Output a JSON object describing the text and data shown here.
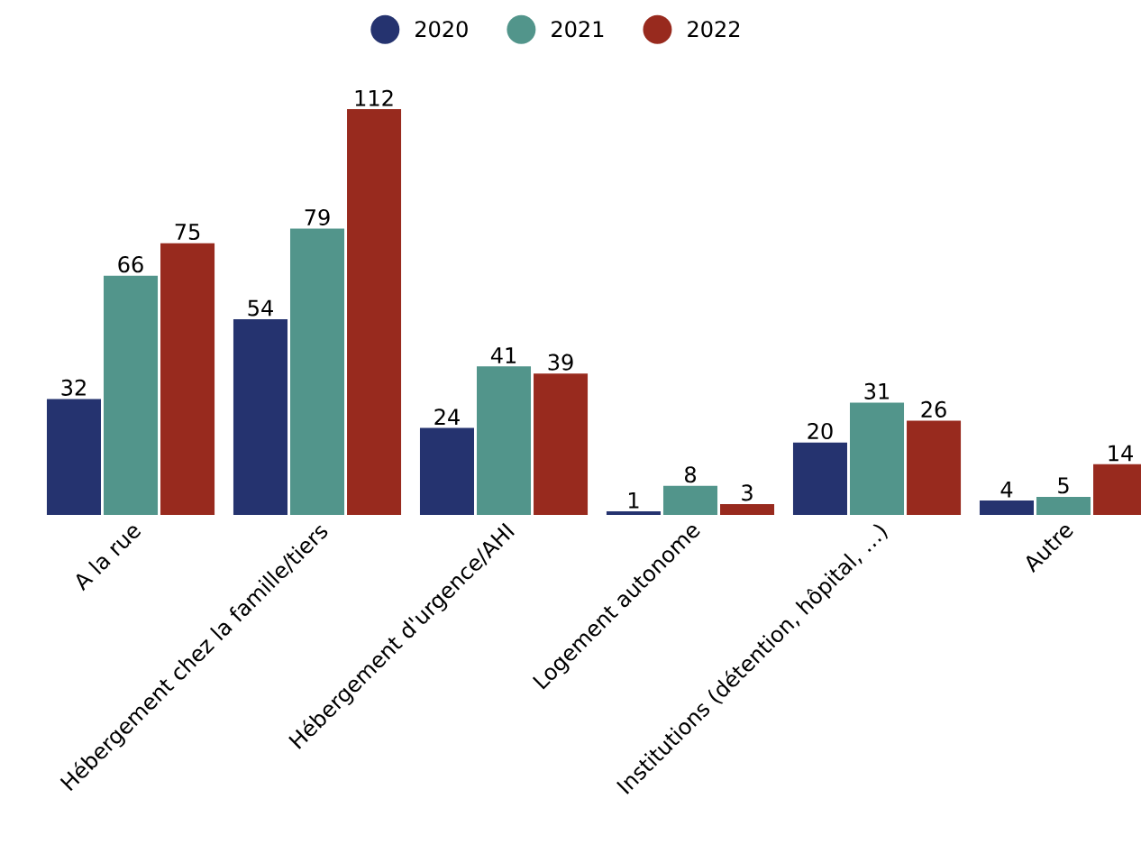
{
  "chart_data": {
    "type": "bar",
    "categories": [
      "A la rue",
      "Hébergement chez la famille/tiers",
      "Hébergement d'urgence/AHI",
      "Logement autonome",
      "Institutions (détention, hôpital, …)",
      "Autre"
    ],
    "series": [
      {
        "name": "2020",
        "color": "#25336f",
        "values": [
          32,
          54,
          24,
          1,
          20,
          4
        ]
      },
      {
        "name": "2021",
        "color": "#52958b",
        "values": [
          66,
          79,
          41,
          8,
          31,
          5
        ]
      },
      {
        "name": "2022",
        "color": "#982a1e",
        "values": [
          75,
          112,
          39,
          3,
          26,
          14
        ]
      }
    ],
    "ylim": [
      0,
      112
    ],
    "data_labels": true,
    "legend": "top"
  }
}
